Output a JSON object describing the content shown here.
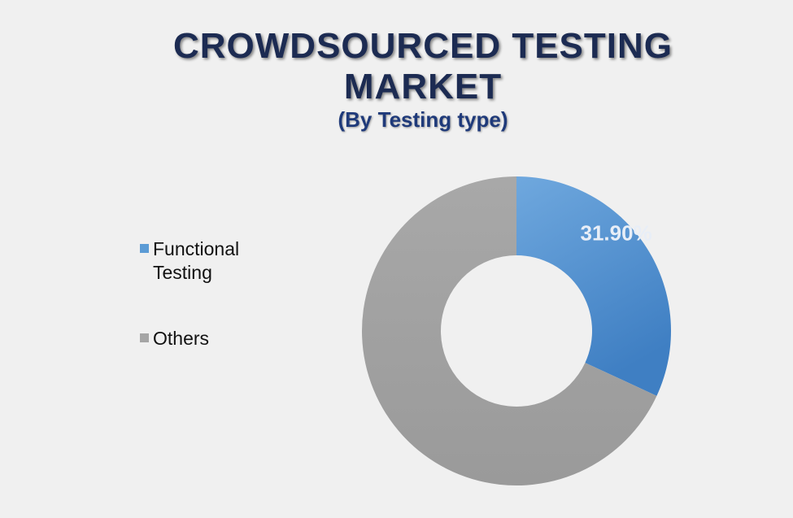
{
  "header": {
    "title": "CROWDSOURCED TESTING MARKET",
    "subtitle": "(By Testing type)"
  },
  "chart_data": {
    "type": "pie",
    "title": "CROWDSOURCED TESTING MARKET",
    "subtitle": "(By Testing type)",
    "donut": true,
    "legend_position": "left",
    "series": [
      {
        "name": "Functional Testing",
        "value": 31.9,
        "label": "31.90%",
        "color": "#5b9bd5"
      },
      {
        "name": "Others",
        "value": 68.1,
        "label": "",
        "color": "#a5a5a5"
      }
    ]
  }
}
